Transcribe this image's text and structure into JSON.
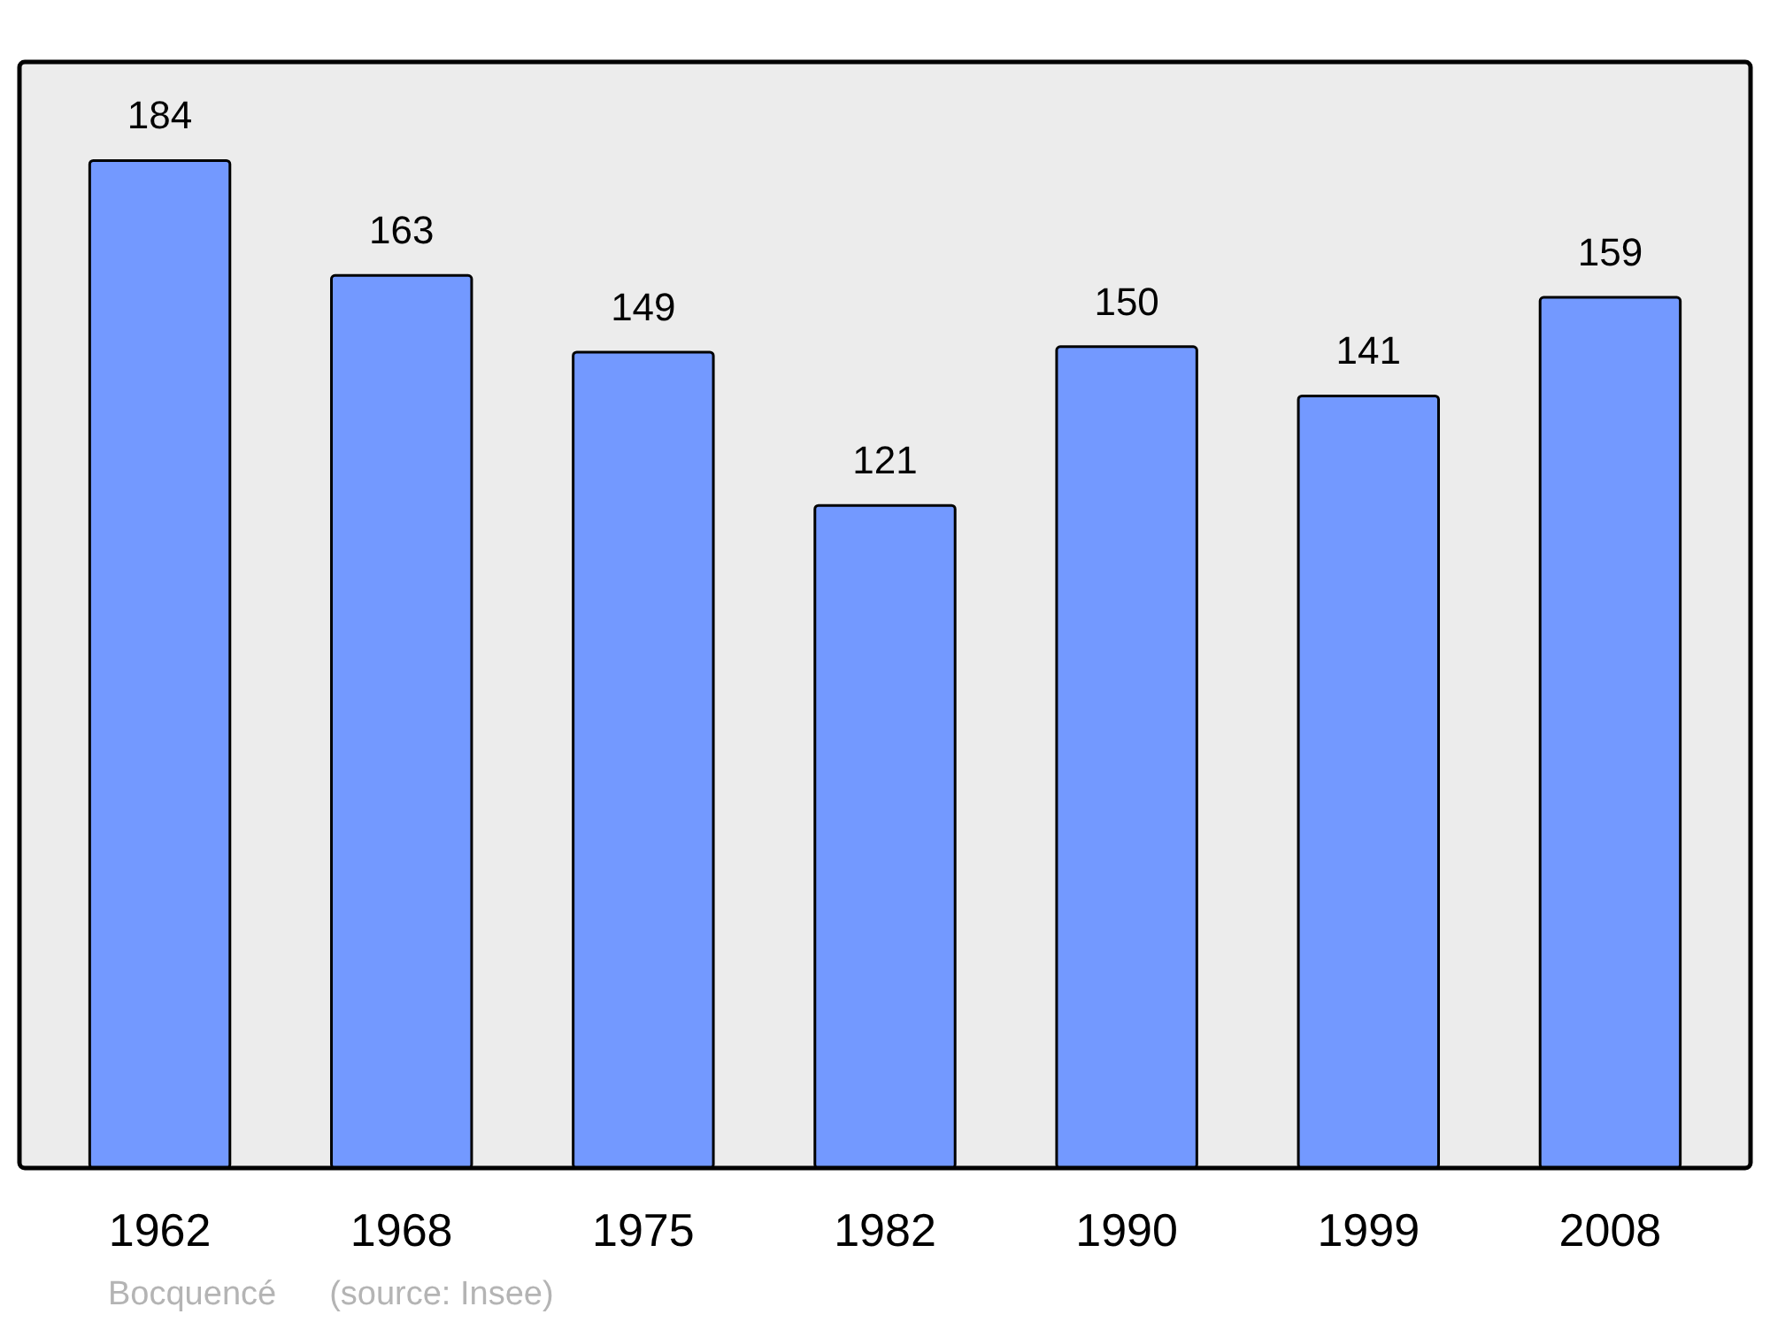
{
  "chart_data": {
    "type": "bar",
    "categories": [
      "1962",
      "1968",
      "1975",
      "1982",
      "1990",
      "1999",
      "2008"
    ],
    "values": [
      184,
      163,
      149,
      121,
      150,
      141,
      159
    ],
    "color": "#7399ff",
    "ylim": [
      0,
      202
    ],
    "data_labels": true,
    "annotations": [
      "Bocquencé",
      "(source: Insee)"
    ]
  }
}
